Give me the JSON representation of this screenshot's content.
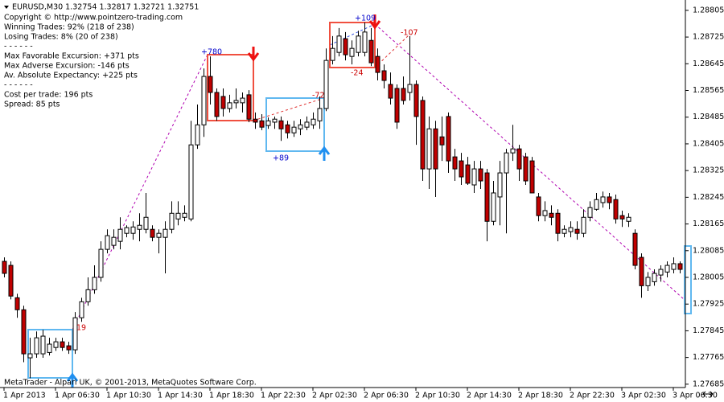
{
  "chart_data": {
    "type": "candlestick",
    "header": "EURUSD,M30  1.32754 1.32817 1.32721 1.32751",
    "info_lines": [
      "Copyright © http://www.pointzero-trading.com",
      "Winning Trades: 92% (218 of 238)",
      "Losing Trades: 8% (20 of 238)",
      "- - - - - -",
      "Max Favorable Excursion: +371 pts",
      "Max Adverse Excursion: -146 pts",
      "Av. Absolute Expectancy: +225 pts",
      "- - - - - -",
      "Cost per trade: 196 pts",
      "Spread: 85 pts"
    ],
    "annotations": [
      "+780",
      "-72",
      "+89",
      "+109",
      "-107",
      "-24",
      "19"
    ],
    "footer": "MetaTrader - Alpari UK, © 2001-2013, MetaQuotes Software Corp.",
    "up_color": "#ffffff",
    "down_color": "#c00000",
    "wick_color": "#000000",
    "ohlc": [
      [
        1.28053,
        1.28065,
        1.28005,
        1.28017
      ],
      [
        1.28041,
        1.28053,
        1.27939,
        1.27949
      ],
      [
        1.27944,
        1.27956,
        1.27884,
        1.27908
      ],
      [
        1.27908,
        1.2792,
        1.27751,
        1.27776
      ],
      [
        1.27764,
        1.27824,
        1.27703,
        1.27776
      ],
      [
        1.27776,
        1.27843,
        1.27764,
        1.27824
      ],
      [
        1.27776,
        1.27848,
        1.27764,
        1.27829
      ],
      [
        1.2778,
        1.27824,
        1.27771,
        1.27805
      ],
      [
        1.27795,
        1.27824,
        1.27785,
        1.27812
      ],
      [
        1.27812,
        1.27824,
        1.27785,
        1.27795
      ],
      [
        1.278,
        1.27812,
        1.27776,
        1.27788
      ],
      [
        1.27788,
        1.27901,
        1.27776,
        1.27884
      ],
      [
        1.27884,
        1.27944,
        1.27872,
        1.27932
      ],
      [
        1.27932,
        1.28005,
        1.2792,
        1.27968
      ],
      [
        1.27968,
        1.28041,
        1.27956,
        1.28005
      ],
      [
        1.28005,
        1.28113,
        1.27992,
        1.28089
      ],
      [
        1.28089,
        1.28149,
        1.28077,
        1.2813
      ],
      [
        1.28101,
        1.28149,
        1.28089,
        1.28125
      ],
      [
        1.28113,
        1.28185,
        1.28089,
        1.28149
      ],
      [
        1.28137,
        1.28161,
        1.28125,
        1.28154
      ],
      [
        1.28137,
        1.28173,
        1.28118,
        1.28156
      ],
      [
        1.28149,
        1.28197,
        1.28113,
        1.28161
      ],
      [
        1.28149,
        1.28258,
        1.28137,
        1.28185
      ],
      [
        1.28149,
        1.28161,
        1.28113,
        1.28125
      ],
      [
        1.28125,
        1.28149,
        1.28077,
        1.28137
      ],
      [
        1.28125,
        1.28173,
        1.28017,
        1.28149
      ],
      [
        1.28149,
        1.28233,
        1.28137,
        1.28197
      ],
      [
        1.2818,
        1.28233,
        1.28161,
        1.28197
      ],
      [
        1.28185,
        1.28221,
        1.28173,
        1.28197
      ],
      [
        1.2818,
        1.28474,
        1.28173,
        1.28402
      ],
      [
        1.28402,
        1.28523,
        1.2839,
        1.28462
      ],
      [
        1.28462,
        1.28631,
        1.28426,
        1.28607
      ],
      [
        1.28607,
        1.28667,
        1.28523,
        1.28559
      ],
      [
        1.28559,
        1.28571,
        1.28474,
        1.28487
      ],
      [
        1.28547,
        1.28571,
        1.28487,
        1.28511
      ],
      [
        1.28511,
        1.28552,
        1.28499,
        1.28528
      ],
      [
        1.28528,
        1.28571,
        1.28511,
        1.28535
      ],
      [
        1.28528,
        1.28559,
        1.28499,
        1.28542
      ],
      [
        1.28552,
        1.28566,
        1.2847,
        1.28479
      ],
      [
        1.28479,
        1.28499,
        1.2845,
        1.2847
      ],
      [
        1.28474,
        1.28494,
        1.28446,
        1.28455
      ],
      [
        1.2846,
        1.28484,
        1.2845,
        1.28474
      ],
      [
        1.2847,
        1.28487,
        1.2845,
        1.28479
      ],
      [
        1.28474,
        1.28487,
        1.28414,
        1.2845
      ],
      [
        1.28462,
        1.28474,
        1.28421,
        1.28438
      ],
      [
        1.28438,
        1.28474,
        1.28426,
        1.28455
      ],
      [
        1.2845,
        1.28479,
        1.28431,
        1.28462
      ],
      [
        1.28455,
        1.28487,
        1.28446,
        1.2847
      ],
      [
        1.28462,
        1.28499,
        1.2845,
        1.28479
      ],
      [
        1.28474,
        1.28547,
        1.2845,
        1.28511
      ],
      [
        1.28511,
        1.28691,
        1.28503,
        1.28655
      ],
      [
        1.28655,
        1.28728,
        1.28643,
        1.28691
      ],
      [
        1.28679,
        1.28752,
        1.28667,
        1.28728
      ],
      [
        1.2872,
        1.2874,
        1.28655,
        1.28672
      ],
      [
        1.28667,
        1.28715,
        1.28643,
        1.28691
      ],
      [
        1.28679,
        1.28744,
        1.28667,
        1.28728
      ],
      [
        1.28679,
        1.28769,
        1.28667,
        1.2874
      ],
      [
        1.28715,
        1.28752,
        1.28638,
        1.28648
      ],
      [
        1.28667,
        1.28691,
        1.28595,
        1.28619
      ],
      [
        1.28624,
        1.28643,
        1.28571,
        1.28595
      ],
      [
        1.28583,
        1.28619,
        1.28523,
        1.28542
      ],
      [
        1.28571,
        1.28583,
        1.2845,
        1.2847
      ],
      [
        1.28571,
        1.28607,
        1.28523,
        1.28535
      ],
      [
        1.28559,
        1.28728,
        1.28535,
        1.28583
      ],
      [
        1.28583,
        1.28595,
        1.28402,
        1.28487
      ],
      [
        1.28535,
        1.28547,
        1.28294,
        1.2833
      ],
      [
        1.2833,
        1.28487,
        1.2827,
        1.2845
      ],
      [
        1.2845,
        1.28474,
        1.28246,
        1.2833
      ],
      [
        1.28426,
        1.28487,
        1.28354,
        1.28402
      ],
      [
        1.28487,
        1.28499,
        1.28318,
        1.28354
      ],
      [
        1.28366,
        1.2839,
        1.28294,
        1.2833
      ],
      [
        1.28354,
        1.28378,
        1.28282,
        1.28306
      ],
      [
        1.28342,
        1.28366,
        1.28282,
        1.28287
      ],
      [
        1.28282,
        1.28354,
        1.28258,
        1.2833
      ],
      [
        1.2833,
        1.28354,
        1.2827,
        1.28294
      ],
      [
        1.28318,
        1.2833,
        1.28113,
        1.28173
      ],
      [
        1.28173,
        1.28294,
        1.28161,
        1.28258
      ],
      [
        1.28246,
        1.28354,
        1.28161,
        1.28318
      ],
      [
        1.28318,
        1.2839,
        1.28137,
        1.28378
      ],
      [
        1.28378,
        1.28462,
        1.28354,
        1.2839
      ],
      [
        1.2839,
        1.28402,
        1.28294,
        1.2833
      ],
      [
        1.28366,
        1.28378,
        1.28282,
        1.28294
      ],
      [
        1.28354,
        1.28366,
        1.28258,
        1.28258
      ],
      [
        1.28246,
        1.28258,
        1.28173,
        1.2819
      ],
      [
        1.2819,
        1.28233,
        1.28173,
        1.28205
      ],
      [
        1.28197,
        1.28221,
        1.28161,
        1.28185
      ],
      [
        1.28197,
        1.28209,
        1.28113,
        1.28137
      ],
      [
        1.28137,
        1.28161,
        1.28125,
        1.28149
      ],
      [
        1.28142,
        1.28173,
        1.28125,
        1.28154
      ],
      [
        1.28149,
        1.28173,
        1.28118,
        1.28137
      ],
      [
        1.28137,
        1.28209,
        1.28125,
        1.28185
      ],
      [
        1.28185,
        1.28233,
        1.28173,
        1.28214
      ],
      [
        1.28209,
        1.28258,
        1.28205,
        1.28238
      ],
      [
        1.28229,
        1.28262,
        1.28214,
        1.28246
      ],
      [
        1.28246,
        1.28258,
        1.28209,
        1.28229
      ],
      [
        1.28238,
        1.28253,
        1.28166,
        1.2818
      ],
      [
        1.2819,
        1.28205,
        1.28156,
        1.2818
      ],
      [
        1.28173,
        1.28197,
        1.28156,
        1.28185
      ],
      [
        1.28137,
        1.28149,
        1.28029,
        1.28041
      ],
      [
        1.28065,
        1.28077,
        1.27944,
        1.2798
      ],
      [
        1.2798,
        1.28021,
        1.27964,
        1.28005
      ],
      [
        1.27992,
        1.28029,
        1.2798,
        1.28017
      ],
      [
        1.28012,
        1.28041,
        1.27992,
        1.28029
      ],
      [
        1.28021,
        1.28053,
        1.28005,
        1.28041
      ],
      [
        1.28029,
        1.28065,
        1.28017,
        1.28046
      ],
      [
        1.28046,
        1.28053,
        1.28017,
        1.28029
      ]
    ],
    "xlim": [
      -0.625,
      105.875
    ],
    "xticks": [
      {
        "value": 0,
        "label": "1 Apr 2013"
      },
      {
        "value": 8,
        "label": "1 Apr 06:30"
      },
      {
        "value": 16,
        "label": "1 Apr 10:30"
      },
      {
        "value": 24,
        "label": "1 Apr 14:30"
      },
      {
        "value": 32,
        "label": "1 Apr 18:30"
      },
      {
        "value": 40,
        "label": "1 Apr 22:30"
      },
      {
        "value": 48,
        "label": "2 Apr 02:30"
      },
      {
        "value": 56,
        "label": "2 Apr 06:30"
      },
      {
        "value": 64,
        "label": "2 Apr 10:30"
      },
      {
        "value": 72,
        "label": "2 Apr 14:30"
      },
      {
        "value": 80,
        "label": "2 Apr 18:30"
      },
      {
        "value": 88,
        "label": "2 Apr 22:30"
      },
      {
        "value": 96,
        "label": "3 Apr 02:30"
      },
      {
        "value": 104,
        "label": "3 Apr 06:30"
      }
    ],
    "ylim": [
      1.27675,
      1.28836
    ],
    "yticks": [
      1.28805,
      1.28725,
      1.28645,
      1.28565,
      1.28485,
      1.28405,
      1.28325,
      1.28245,
      1.28165,
      1.28085,
      1.28005,
      1.27925,
      1.27845,
      1.27765,
      1.27685
    ],
    "grid": false
  }
}
